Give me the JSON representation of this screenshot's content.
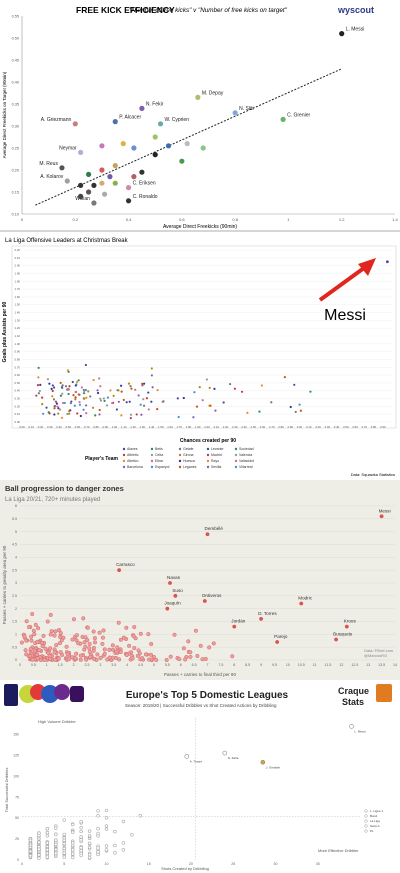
{
  "chart_data": [
    {
      "type": "scatter",
      "title": "FREE KICK EFFICIENCY",
      "subtitle": "\"Number of free kicks\" v \"Number of free kicks on target\"",
      "brand": "wyscout",
      "xlabel": "Average Direct Freekicks (90min)",
      "ylabel": "Average Direct Freekicks on Target (90min)",
      "xlim": [
        0,
        1.4
      ],
      "ylim": [
        0.1,
        0.55
      ],
      "xticks": [
        "0",
        "0.2",
        "0.4",
        "0.6",
        "0.8",
        "1",
        "1.2",
        "1.4"
      ],
      "yticks": [
        "0.10",
        "0.15",
        "0.20",
        "0.25",
        "0.30",
        "0.35",
        "0.40",
        "0.45",
        "0.50",
        "0.55"
      ],
      "trendline": [
        [
          0.05,
          0.12
        ],
        [
          1.2,
          0.43
        ]
      ],
      "points": [
        {
          "x": 1.2,
          "y": 0.51,
          "label": "L. Messi",
          "color": "#222222"
        },
        {
          "x": 0.66,
          "y": 0.365,
          "label": "M. Depay",
          "color": "#a8c070"
        },
        {
          "x": 0.8,
          "y": 0.33,
          "label": "N. Sliti",
          "color": "#7fa7d9"
        },
        {
          "x": 0.98,
          "y": 0.315,
          "label": "C. Grenier",
          "color": "#6bb36b"
        },
        {
          "x": 0.45,
          "y": 0.34,
          "label": "N. Fekir",
          "color": "#7f5fb0"
        },
        {
          "x": 0.35,
          "y": 0.31,
          "label": "P. Alcacer",
          "color": "#4f6fae"
        },
        {
          "x": 0.52,
          "y": 0.305,
          "label": "W. Cyprien",
          "color": "#66aaaa"
        },
        {
          "x": 0.2,
          "y": 0.305,
          "label": "A. Griezmann",
          "color": "#c97d7d"
        },
        {
          "x": 0.22,
          "y": 0.24,
          "label": "Neymar",
          "color": "#b0b0d8"
        },
        {
          "x": 0.15,
          "y": 0.205,
          "label": "M. Reus",
          "color": "#555555"
        },
        {
          "x": 0.17,
          "y": 0.175,
          "label": "A. Kolarov",
          "color": "#a0a0a0"
        },
        {
          "x": 0.4,
          "y": 0.16,
          "label": "C. Eriksen",
          "color": "#d08aa6"
        },
        {
          "x": 0.4,
          "y": 0.13,
          "label": "C. Ronaldo",
          "color": "#333333"
        },
        {
          "x": 0.27,
          "y": 0.125,
          "label": "Willian",
          "color": "#777777"
        },
        {
          "x": 0.3,
          "y": 0.255,
          "color": "#c27ab8"
        },
        {
          "x": 0.38,
          "y": 0.26,
          "color": "#e0b14a"
        },
        {
          "x": 0.42,
          "y": 0.25,
          "color": "#6b8dd6"
        },
        {
          "x": 0.5,
          "y": 0.275,
          "color": "#9cc46a"
        },
        {
          "x": 0.55,
          "y": 0.255,
          "color": "#3b6bb0"
        },
        {
          "x": 0.5,
          "y": 0.235,
          "color": "#222222"
        },
        {
          "x": 0.62,
          "y": 0.26,
          "color": "#bbbbbb"
        },
        {
          "x": 0.68,
          "y": 0.25,
          "color": "#8bc48b"
        },
        {
          "x": 0.6,
          "y": 0.22,
          "color": "#4d9a4d"
        },
        {
          "x": 0.3,
          "y": 0.2,
          "color": "#d65a5a"
        },
        {
          "x": 0.35,
          "y": 0.21,
          "color": "#c9a060"
        },
        {
          "x": 0.25,
          "y": 0.19,
          "color": "#2e7d4f"
        },
        {
          "x": 0.33,
          "y": 0.185,
          "color": "#6b5fa6"
        },
        {
          "x": 0.3,
          "y": 0.17,
          "color": "#d0b070"
        },
        {
          "x": 0.22,
          "y": 0.165,
          "color": "#333333"
        },
        {
          "x": 0.27,
          "y": 0.165,
          "color": "#333333"
        },
        {
          "x": 0.35,
          "y": 0.17,
          "color": "#8bb04a"
        },
        {
          "x": 0.42,
          "y": 0.185,
          "color": "#b06060"
        },
        {
          "x": 0.25,
          "y": 0.15,
          "color": "#555555"
        },
        {
          "x": 0.31,
          "y": 0.145,
          "color": "#aaaaaa"
        },
        {
          "x": 0.45,
          "y": 0.195,
          "color": "#333333"
        },
        {
          "x": 0.22,
          "y": 0.14,
          "color": "#444444"
        }
      ]
    },
    {
      "type": "scatter",
      "title": "La Liga Offensive Leaders at Christmas Break",
      "xlabel": "Chances created per 90",
      "ylabel": "Goals plus Assists per 90",
      "xlim": [
        0.0,
        4.0
      ],
      "ylim": [
        0.0,
        2.2
      ],
      "xticks": [
        "0.00",
        "0.10",
        "0.20",
        "0.30",
        "0.40",
        "0.50",
        "0.60",
        "0.70",
        "0.80",
        "0.90",
        "1.00",
        "1.10",
        "1.20",
        "1.30",
        "1.40",
        "1.50",
        "1.60",
        "1.70",
        "1.80",
        "1.90",
        "2.00",
        "2.10",
        "2.20",
        "2.30",
        "2.40",
        "2.50",
        "2.60",
        "2.70",
        "2.80",
        "2.90",
        "3.00",
        "3.10",
        "3.20",
        "3.30",
        "3.40",
        "3.50",
        "3.60",
        "3.70",
        "3.80",
        "3.90"
      ],
      "yticks": [
        "0.00",
        "0.10",
        "0.20",
        "0.30",
        "0.40",
        "0.50",
        "0.60",
        "0.70",
        "0.80",
        "0.90",
        "1.00",
        "1.10",
        "1.20",
        "1.30",
        "1.40",
        "1.50",
        "1.60",
        "1.70",
        "1.80",
        "1.90",
        "2.00",
        "2.10",
        "2.20"
      ],
      "annotation": "Messi",
      "messi_point": {
        "x": 3.95,
        "y": 2.05
      },
      "legend_title": "Player's Team",
      "legend": [
        "Alaves",
        "Athletic",
        "Atletico",
        "Barcelona",
        "Betis",
        "Celta",
        "Eibar",
        "Espanyol",
        "Getafe",
        "Girona",
        "Huesca",
        "Leganes",
        "Levante",
        "Madrid",
        "Rayo",
        "Sevilla",
        "Sociedad",
        "Valencia",
        "Valladolid",
        "Villarreal"
      ],
      "source": "Data: Squawka Statistics"
    },
    {
      "type": "scatter",
      "title": "Ball progression to danger zones",
      "subtitle": "La Liga 20/21, 720+ minutes played",
      "xlabel": "Passes + carries to final third per 90",
      "ylabel": "Passes + carries to penalty area per 90",
      "xlim": [
        0,
        14
      ],
      "ylim": [
        0,
        6
      ],
      "xticks": [
        "0",
        "0.5",
        "1",
        "1.5",
        "2",
        "2.5",
        "3",
        "3.5",
        "4",
        "4.5",
        "5",
        "5.5",
        "6",
        "6.5",
        "7",
        "7.5",
        "8",
        "8.5",
        "9",
        "9.5",
        "10",
        "10.5",
        "11",
        "11.5",
        "12",
        "12.5",
        "13",
        "13.5",
        "14"
      ],
      "yticks": [
        "0",
        "0.5",
        "1",
        "1.5",
        "2",
        "2.5",
        "3",
        "3.5",
        "4",
        "4.5",
        "5",
        "5.5",
        "6"
      ],
      "points": [
        {
          "x": 13.5,
          "y": 5.6,
          "label": "Messi"
        },
        {
          "x": 7.0,
          "y": 4.9,
          "label": "Dembélé"
        },
        {
          "x": 3.7,
          "y": 3.5,
          "label": "Carrasco"
        },
        {
          "x": 5.6,
          "y": 3.0,
          "label": "Navas"
        },
        {
          "x": 5.8,
          "y": 2.5,
          "label": "Suso"
        },
        {
          "x": 6.9,
          "y": 2.3,
          "label": "Ontiveros"
        },
        {
          "x": 5.5,
          "y": 2.0,
          "label": "Joaquín"
        },
        {
          "x": 10.5,
          "y": 2.2,
          "label": "Modric"
        },
        {
          "x": 9.0,
          "y": 1.6,
          "label": "D. Torres"
        },
        {
          "x": 8.0,
          "y": 1.3,
          "label": "Jordán"
        },
        {
          "x": 12.2,
          "y": 1.3,
          "label": "Kroos"
        },
        {
          "x": 11.8,
          "y": 0.8,
          "label": "Busquets"
        },
        {
          "x": 9.6,
          "y": 0.7,
          "label": "Parejo"
        }
      ],
      "source": "Data: FBref.com",
      "handle": "@MarcosRG"
    },
    {
      "type": "scatter",
      "title": "Europe's Top 5 Domestic Leagues",
      "subtitle": "Season: 2019/20 | Successful Dribbles vs Shot Created Actions by Dribbling",
      "brand_line1": "Craque",
      "brand_line2": "Stats",
      "xlabel": "Shots Created by Dribbling",
      "ylabel": "Total Successful Dribbles",
      "quadrant_label": "High Volume Dribbler",
      "quadrant_label2": "More Effective Dribbler",
      "xlim": [
        0,
        40
      ],
      "ylim": [
        0,
        170
      ],
      "xticks": [
        "0",
        "5",
        "10",
        "15",
        "20",
        "25",
        "30",
        "35"
      ],
      "yticks": [
        "0",
        "25",
        "50",
        "75",
        "100",
        "125",
        "150"
      ],
      "points": [
        {
          "x": 39,
          "y": 160,
          "label": "L. Messi"
        },
        {
          "x": 19.5,
          "y": 124,
          "label": "A. Traoré"
        },
        {
          "x": 24,
          "y": 128,
          "label": "N. Zaha"
        },
        {
          "x": 28.5,
          "y": 117,
          "label": "J. Grealish",
          "color": "#d9a53a"
        }
      ],
      "legend": [
        "L. Ligue 1",
        "Bund.",
        "La Liga",
        "Serie A",
        "PL"
      ]
    }
  ]
}
